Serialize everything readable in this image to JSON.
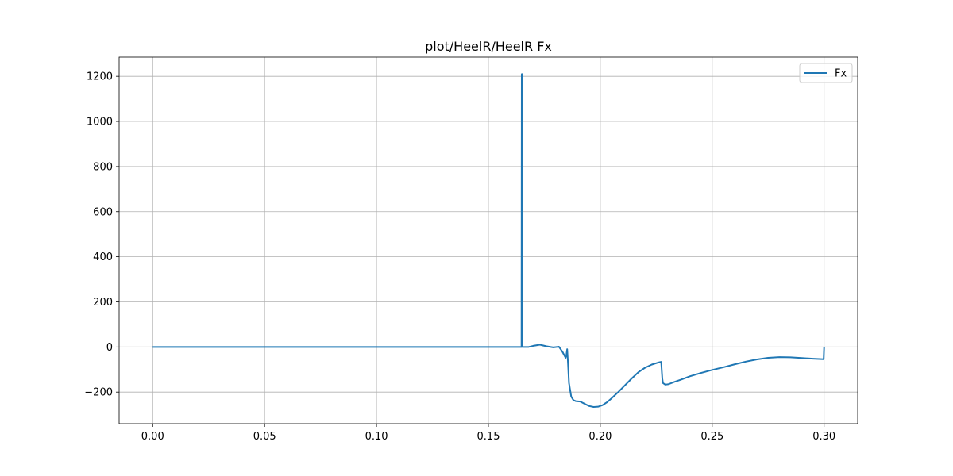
{
  "chart_data": {
    "type": "line",
    "title": "plot/HeelR/HeelR Fx",
    "xlabel": "",
    "ylabel": "",
    "xlim": [
      -0.015,
      0.315
    ],
    "ylim": [
      -340,
      1285
    ],
    "grid": true,
    "legend_position": "top-right",
    "x_ticks": [
      0.0,
      0.05,
      0.1,
      0.15,
      0.2,
      0.25,
      0.3
    ],
    "x_tick_labels": [
      "0.00",
      "0.05",
      "0.10",
      "0.15",
      "0.20",
      "0.25",
      "0.30"
    ],
    "y_ticks": [
      -200,
      0,
      200,
      400,
      600,
      800,
      1000,
      1200
    ],
    "y_tick_labels": [
      "−200",
      "0",
      "200",
      "400",
      "600",
      "800",
      "1000",
      "1200"
    ],
    "series": [
      {
        "name": "Fx",
        "color": "#1f77b4",
        "x": [
          0.0,
          0.05,
          0.1,
          0.15,
          0.1648,
          0.1649,
          0.1651,
          0.1652,
          0.1653,
          0.168,
          0.17,
          0.173,
          0.176,
          0.179,
          0.1815,
          0.183,
          0.1845,
          0.1848,
          0.1852,
          0.1856,
          0.186,
          0.187,
          0.188,
          0.189,
          0.191,
          0.193,
          0.195,
          0.197,
          0.199,
          0.201,
          0.203,
          0.205,
          0.208,
          0.211,
          0.214,
          0.217,
          0.22,
          0.223,
          0.2262,
          0.2272,
          0.2277,
          0.228,
          0.229,
          0.2305,
          0.233,
          0.236,
          0.24,
          0.245,
          0.25,
          0.255,
          0.26,
          0.265,
          0.27,
          0.275,
          0.28,
          0.285,
          0.29,
          0.295,
          0.2998,
          0.3
        ],
        "y": [
          0,
          0,
          0,
          0,
          0,
          1210,
          1210,
          0,
          0,
          0,
          5,
          10,
          3,
          -2,
          1,
          -20,
          -48,
          -40,
          -10,
          -80,
          -160,
          -220,
          -236,
          -240,
          -242,
          -252,
          -262,
          -266,
          -265,
          -258,
          -245,
          -228,
          -200,
          -170,
          -140,
          -112,
          -92,
          -78,
          -68,
          -66,
          -140,
          -160,
          -167,
          -165,
          -155,
          -145,
          -130,
          -115,
          -102,
          -90,
          -77,
          -65,
          -55,
          -48,
          -45,
          -46,
          -49,
          -52,
          -54,
          0
        ]
      }
    ]
  }
}
